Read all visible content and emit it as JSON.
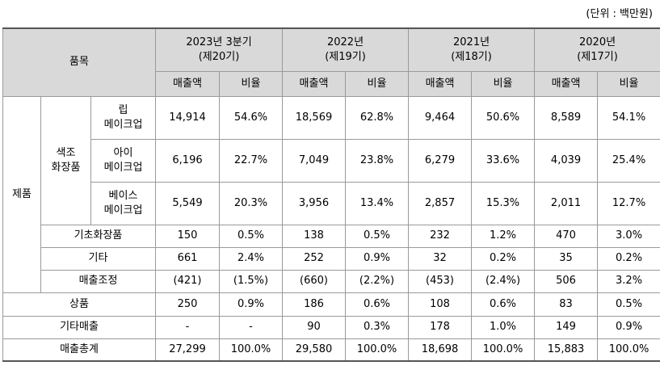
{
  "unit_label": "(단위 : 백만원)",
  "header": {
    "item": "품목",
    "periods": [
      {
        "year": "2023년 3분기",
        "term": "(제20기)"
      },
      {
        "year": "2022년",
        "term": "(제19기)"
      },
      {
        "year": "2021년",
        "term": "(제18기)"
      },
      {
        "year": "2020년",
        "term": "(제17기)"
      }
    ],
    "sales_label": "매출액",
    "ratio_label": "비율"
  },
  "groups": {
    "product": "제품",
    "color_cosmetics": "색조\n화장품"
  },
  "rows": [
    {
      "label": "립\n메이크업",
      "values": [
        "14,914",
        "54.6%",
        "18,569",
        "62.8%",
        "9,464",
        "50.6%",
        "8,589",
        "54.1%"
      ]
    },
    {
      "label": "아이\n메이크업",
      "values": [
        "6,196",
        "22.7%",
        "7,049",
        "23.8%",
        "6,279",
        "33.6%",
        "4,039",
        "25.4%"
      ]
    },
    {
      "label": "베이스\n메이크업",
      "values": [
        "5,549",
        "20.3%",
        "3,956",
        "13.4%",
        "2,857",
        "15.3%",
        "2,011",
        "12.7%"
      ]
    },
    {
      "label": "기초화장품",
      "values": [
        "150",
        "0.5%",
        "138",
        "0.5%",
        "232",
        "1.2%",
        "470",
        "3.0%"
      ]
    },
    {
      "label": "기타",
      "values": [
        "661",
        "2.4%",
        "252",
        "0.9%",
        "32",
        "0.2%",
        "35",
        "0.2%"
      ]
    },
    {
      "label": "매출조정",
      "values": [
        "(421)",
        "(1.5%)",
        "(660)",
        "(2.2%)",
        "(453)",
        "(2.4%)",
        "506",
        "3.2%"
      ]
    },
    {
      "label": "상품",
      "values": [
        "250",
        "0.9%",
        "186",
        "0.6%",
        "108",
        "0.6%",
        "83",
        "0.5%"
      ]
    },
    {
      "label": "기타매출",
      "values": [
        "-",
        "-",
        "90",
        "0.3%",
        "178",
        "1.0%",
        "149",
        "0.9%"
      ]
    },
    {
      "label": "매출총계",
      "values": [
        "27,299",
        "100.0%",
        "29,580",
        "100.0%",
        "18,698",
        "100.0%",
        "15,883",
        "100.0%"
      ]
    }
  ]
}
